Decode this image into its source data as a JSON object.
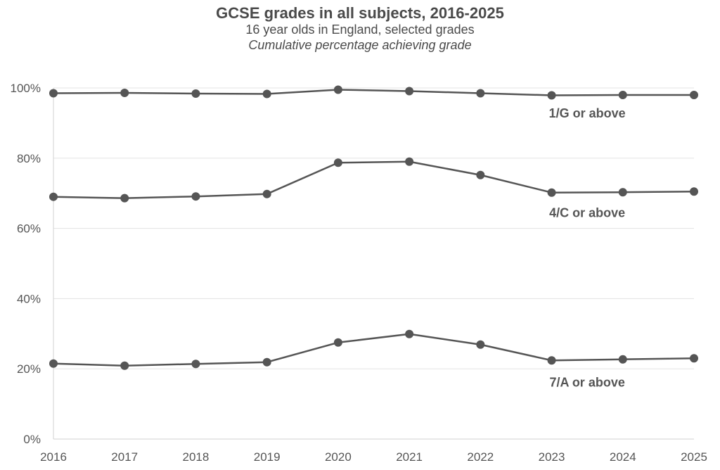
{
  "chart_data": {
    "type": "line",
    "title": "GCSE grades in all subjects, 2016-2025",
    "subtitle": "16 year olds in England, selected grades",
    "note": "Cumulative percentage achieving grade",
    "xlabel": "",
    "ylabel": "",
    "x": [
      "2016",
      "2017",
      "2018",
      "2019",
      "2020",
      "2021",
      "2022",
      "2023",
      "2024",
      "2025"
    ],
    "ylim": [
      0,
      100
    ],
    "y_ticks": [
      0,
      20,
      40,
      60,
      80,
      100
    ],
    "y_tick_labels": [
      "0%",
      "20%",
      "40%",
      "60%",
      "80%",
      "100%"
    ],
    "grid": true,
    "legend": "none (series labelled directly on chart)",
    "color": "#555555",
    "series": [
      {
        "name": "1/G or above",
        "values": [
          98.5,
          98.6,
          98.4,
          98.3,
          99.5,
          99.1,
          98.5,
          97.9,
          98.0,
          98.0
        ]
      },
      {
        "name": "4/C or above",
        "values": [
          69.0,
          68.6,
          69.1,
          69.8,
          78.7,
          79.0,
          75.2,
          70.2,
          70.3,
          70.5
        ]
      },
      {
        "name": "7/A or above",
        "values": [
          21.5,
          20.9,
          21.4,
          21.9,
          27.5,
          29.9,
          26.9,
          22.4,
          22.7,
          23.0
        ]
      }
    ]
  }
}
